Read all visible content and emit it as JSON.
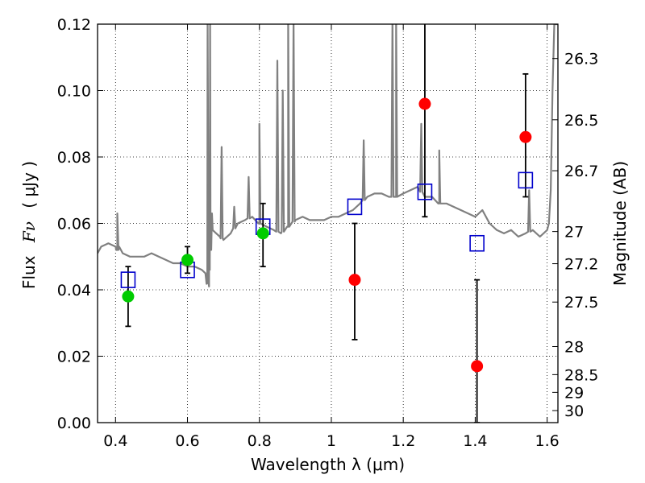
{
  "chart_data": {
    "type": "scatter",
    "xlabel": "Wavelength  λ (μm)",
    "ylabel_left_prefix": "Flux",
    "ylabel_left_symbol": "Fν",
    "ylabel_left_unit": "( μJy )",
    "ylabel_right": "Magnitude (AB)",
    "xlim": [
      0.35,
      1.63
    ],
    "ylim": [
      0.0,
      0.12
    ],
    "grid": true,
    "x_ticks": [
      0.4,
      0.6,
      0.8,
      1.0,
      1.2,
      1.4,
      1.6
    ],
    "x_tick_labels": [
      "0.4",
      "0.6",
      "0.8",
      "1",
      "1.2",
      "1.4",
      "1.6"
    ],
    "y_ticks": [
      0.0,
      0.02,
      0.04,
      0.06,
      0.08,
      0.1,
      0.12
    ],
    "y_tick_labels": [
      "0.00",
      "0.02",
      "0.04",
      "0.06",
      "0.08",
      "0.10",
      "0.12"
    ],
    "right_axis": {
      "scale": "AB magnitude (m = 23.9 - 2.5 log10 Fν[μJy])",
      "ticks": [
        26.3,
        26.5,
        26.7,
        27,
        27.2,
        27.5,
        28,
        28.5,
        29,
        30
      ],
      "tick_labels": [
        "26.3",
        "26.5",
        "26.7",
        "27",
        "27.2",
        "27.5",
        "28",
        "28.5",
        "29",
        "30"
      ]
    },
    "model_spectrum": {
      "color": "#808080",
      "x": [
        0.35,
        0.36,
        0.38,
        0.4,
        0.405,
        0.41,
        0.42,
        0.44,
        0.46,
        0.48,
        0.5,
        0.52,
        0.54,
        0.56,
        0.58,
        0.6,
        0.62,
        0.64,
        0.65,
        0.655,
        0.66,
        0.662,
        0.664,
        0.666,
        0.668,
        0.67,
        0.68,
        0.69,
        0.7,
        0.72,
        0.74,
        0.76,
        0.78,
        0.8,
        0.82,
        0.84,
        0.86,
        0.88,
        0.9,
        0.92,
        0.94,
        0.96,
        0.98,
        1.0,
        1.02,
        1.04,
        1.06,
        1.08,
        1.1,
        1.12,
        1.14,
        1.16,
        1.18,
        1.2,
        1.22,
        1.24,
        1.26,
        1.28,
        1.3,
        1.32,
        1.34,
        1.36,
        1.38,
        1.4,
        1.42,
        1.44,
        1.46,
        1.48,
        1.5,
        1.52,
        1.54,
        1.56,
        1.58,
        1.6,
        1.605,
        1.61,
        1.615,
        1.62,
        1.63
      ],
      "y": [
        0.051,
        0.053,
        0.054,
        0.053,
        0.052,
        0.053,
        0.051,
        0.05,
        0.05,
        0.05,
        0.051,
        0.05,
        0.049,
        0.048,
        0.048,
        0.047,
        0.047,
        0.046,
        0.045,
        0.042,
        0.041,
        0.046,
        0.058,
        0.062,
        0.063,
        0.058,
        0.057,
        0.056,
        0.055,
        0.057,
        0.06,
        0.061,
        0.062,
        0.06,
        0.059,
        0.058,
        0.057,
        0.059,
        0.061,
        0.062,
        0.061,
        0.061,
        0.061,
        0.062,
        0.062,
        0.063,
        0.064,
        0.066,
        0.068,
        0.069,
        0.069,
        0.068,
        0.068,
        0.069,
        0.07,
        0.071,
        0.068,
        0.068,
        0.066,
        0.066,
        0.065,
        0.064,
        0.063,
        0.062,
        0.064,
        0.06,
        0.058,
        0.057,
        0.058,
        0.056,
        0.057,
        0.058,
        0.056,
        0.058,
        0.06,
        0.07,
        0.1,
        0.12,
        0.12
      ],
      "peaks": [
        [
          0.405,
          0.063
        ],
        [
          0.656,
          0.122
        ],
        [
          0.663,
          0.122
        ],
        [
          0.695,
          0.083
        ],
        [
          0.73,
          0.065
        ],
        [
          0.77,
          0.074
        ],
        [
          0.8,
          0.09
        ],
        [
          0.85,
          0.109
        ],
        [
          0.865,
          0.1
        ],
        [
          0.88,
          0.122
        ],
        [
          0.895,
          0.122
        ],
        [
          1.09,
          0.085
        ],
        [
          1.17,
          0.122
        ],
        [
          1.18,
          0.122
        ],
        [
          1.25,
          0.09
        ],
        [
          1.3,
          0.082
        ],
        [
          1.55,
          0.07
        ]
      ]
    },
    "series": [
      {
        "marker": "open-square",
        "color": "#0000cc",
        "x": [
          0.435,
          0.6,
          0.81,
          1.065,
          1.26,
          1.405,
          1.54
        ],
        "y": [
          0.043,
          0.046,
          0.059,
          0.065,
          0.0695,
          0.054,
          0.073
        ]
      },
      {
        "marker": "filled-circle",
        "color": "#00cc00",
        "x": [
          0.435,
          0.6,
          0.81
        ],
        "y": [
          0.038,
          0.049,
          0.057
        ],
        "err_low": [
          0.029,
          0.045,
          0.047
        ],
        "err_high": [
          0.047,
          0.053,
          0.066
        ]
      },
      {
        "marker": "filled-circle",
        "color": "#ff0000",
        "x": [
          1.065,
          1.26,
          1.405,
          1.54
        ],
        "y": [
          0.043,
          0.096,
          0.017,
          0.086
        ],
        "err_low": [
          0.025,
          0.062,
          0.0,
          0.068
        ],
        "err_high": [
          0.06,
          0.125,
          0.043,
          0.105
        ]
      }
    ]
  }
}
